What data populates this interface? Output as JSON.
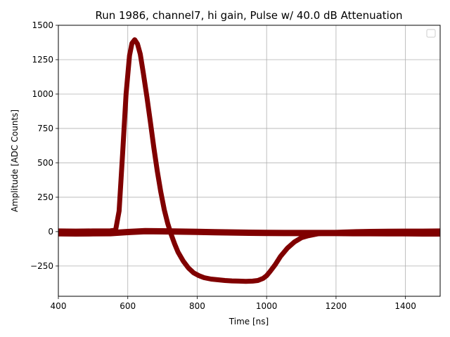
{
  "chart_data": {
    "type": "line",
    "title": "Run 1986, channel7, hi gain, Pulse w/ 40.0 dB Attenuation",
    "xlabel": "Time [ns]",
    "ylabel": "Amplitude [ADC Counts]",
    "xlim": [
      400,
      1500
    ],
    "ylim": [
      -470,
      1500
    ],
    "xticks": [
      400,
      600,
      800,
      1000,
      1200,
      1400
    ],
    "xtick_labels": [
      "400",
      "600",
      "800",
      "1000",
      "1200",
      "1400"
    ],
    "yticks": [
      -250,
      0,
      250,
      500,
      750,
      1000,
      1250,
      1500
    ],
    "ytick_labels": [
      "−250",
      "0",
      "250",
      "500",
      "750",
      "1000",
      "1250",
      "1500"
    ],
    "grid": true,
    "legend": "upper-right (empty)",
    "line_color": "#800000",
    "series": [
      {
        "x": [
          400,
          450,
          500,
          550,
          565,
          575,
          585,
          595,
          605,
          612,
          620,
          628,
          636,
          645,
          655,
          665,
          675,
          685,
          695,
          705,
          715,
          725,
          735,
          745,
          760,
          775,
          790,
          805,
          820,
          840,
          860,
          880,
          900,
          920,
          940,
          960,
          975,
          990,
          1000,
          1010,
          1025,
          1040,
          1060,
          1080,
          1100,
          1120,
          1150,
          1180,
          1220,
          1260,
          1300,
          1350,
          1400,
          1450,
          1500
        ],
        "y": [
          5,
          4,
          5,
          6,
          10,
          150,
          560,
          1000,
          1280,
          1370,
          1395,
          1365,
          1290,
          1150,
          980,
          800,
          610,
          440,
          290,
          160,
          60,
          -20,
          -90,
          -150,
          -215,
          -265,
          -300,
          -320,
          -335,
          -345,
          -350,
          -355,
          -358,
          -360,
          -362,
          -360,
          -355,
          -340,
          -320,
          -290,
          -240,
          -180,
          -120,
          -75,
          -45,
          -30,
          -15,
          -8,
          -3,
          0,
          2,
          3,
          4,
          4,
          5
        ]
      },
      {
        "x": [
          400,
          450,
          500,
          550,
          600,
          650,
          700,
          750,
          800,
          850,
          900,
          950,
          1000,
          1050,
          1100,
          1150,
          1200,
          1250,
          1300,
          1350,
          1400,
          1450,
          1500
        ],
        "y": [
          -12,
          -13,
          -12,
          -11,
          -3,
          3,
          2,
          0,
          -2,
          -4,
          -6,
          -8,
          -9,
          -10,
          -10,
          -10,
          -10,
          -11,
          -11,
          -12,
          -12,
          -13,
          -13
        ]
      }
    ]
  }
}
